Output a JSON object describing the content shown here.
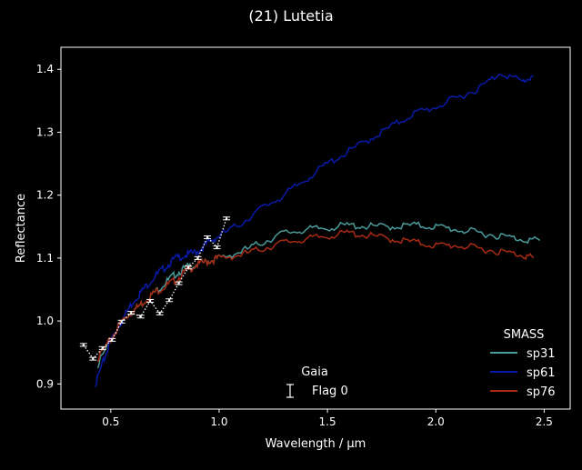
{
  "page": {
    "title": "(21) Lutetia"
  },
  "colors": {
    "background": "#000000",
    "axes": "#ffffff",
    "sp31": "#4a9a9a",
    "sp61": "#0a1aa8",
    "sp76": "#a82a14",
    "gaia": "#ffffff",
    "gaia_overlay_blue": "#2a6ad8",
    "gaia_overlay_salmon": "#c8806a"
  },
  "chart_data": {
    "type": "line",
    "title": "(21) Lutetia",
    "xlabel": "Wavelength / μm",
    "ylabel": "Reflectance",
    "xlim": [
      0.27,
      2.62
    ],
    "ylim": [
      0.86,
      1.435
    ],
    "xticks": [
      "0.5",
      "1.0",
      "1.5",
      "2.0",
      "2.5"
    ],
    "xtick_values": [
      0.5,
      1.0,
      1.5,
      2.0,
      2.5
    ],
    "yticks": [
      "0.9",
      "1.0",
      "1.1",
      "1.2",
      "1.3",
      "1.4"
    ],
    "ytick_values": [
      0.9,
      1.0,
      1.1,
      1.2,
      1.3,
      1.4
    ],
    "grid": false,
    "series": [
      {
        "name": "sp31",
        "color": "#4a9a9a",
        "x": [
          0.44,
          0.5,
          0.55,
          0.6,
          0.65,
          0.7,
          0.75,
          0.8,
          0.85,
          0.9,
          0.95,
          1.0,
          1.1,
          1.2,
          1.3,
          1.4,
          1.5,
          1.6,
          1.7,
          1.8,
          1.9,
          2.0,
          2.1,
          2.2,
          2.3,
          2.4,
          2.48
        ],
        "y": [
          0.93,
          0.97,
          1.0,
          1.015,
          1.03,
          1.045,
          1.06,
          1.075,
          1.085,
          1.09,
          1.095,
          1.1,
          1.11,
          1.125,
          1.14,
          1.145,
          1.148,
          1.152,
          1.15,
          1.15,
          1.152,
          1.15,
          1.145,
          1.14,
          1.135,
          1.13,
          1.128
        ]
      },
      {
        "name": "sp61",
        "color": "#0a1aa8",
        "x": [
          0.43,
          0.47,
          0.5,
          0.55,
          0.6,
          0.65,
          0.7,
          0.75,
          0.8,
          0.85,
          0.9,
          0.95,
          1.0,
          1.1,
          1.2,
          1.3,
          1.4,
          1.5,
          1.6,
          1.7,
          1.8,
          1.9,
          2.0,
          2.1,
          2.2,
          2.3,
          2.4,
          2.45
        ],
        "y": [
          0.9,
          0.94,
          0.97,
          1.0,
          1.03,
          1.05,
          1.07,
          1.085,
          1.1,
          1.105,
          1.11,
          1.125,
          1.135,
          1.155,
          1.18,
          1.2,
          1.225,
          1.25,
          1.27,
          1.29,
          1.31,
          1.33,
          1.34,
          1.355,
          1.37,
          1.395,
          1.38,
          1.39
        ]
      },
      {
        "name": "sp76",
        "color": "#a82a14",
        "x": [
          0.44,
          0.5,
          0.55,
          0.6,
          0.65,
          0.7,
          0.75,
          0.8,
          0.85,
          0.9,
          0.95,
          1.0,
          1.1,
          1.2,
          1.3,
          1.4,
          1.5,
          1.6,
          1.7,
          1.8,
          1.9,
          2.0,
          2.1,
          2.2,
          2.3,
          2.4,
          2.45
        ],
        "y": [
          0.94,
          0.97,
          1.0,
          1.015,
          1.03,
          1.045,
          1.055,
          1.065,
          1.08,
          1.09,
          1.095,
          1.1,
          1.105,
          1.115,
          1.125,
          1.13,
          1.135,
          1.14,
          1.135,
          1.13,
          1.125,
          1.12,
          1.12,
          1.115,
          1.11,
          1.105,
          1.1
        ]
      },
      {
        "name": "Flag 0",
        "source": "Gaia",
        "color": "#ffffff",
        "style": "dotted-errorbars",
        "x": [
          0.374,
          0.418,
          0.462,
          0.506,
          0.55,
          0.594,
          0.638,
          0.682,
          0.726,
          0.77,
          0.814,
          0.858,
          0.902,
          0.946,
          0.99,
          1.034
        ],
        "y": [
          0.962,
          0.94,
          0.957,
          0.97,
          0.999,
          1.013,
          1.007,
          1.032,
          1.012,
          1.033,
          1.06,
          1.085,
          1.1,
          1.133,
          1.117,
          1.163
        ]
      }
    ],
    "legend": {
      "position": "lower-right",
      "title": "SMASS",
      "entries": [
        "sp31",
        "sp61",
        "sp76"
      ]
    },
    "gaia_legend": {
      "position": "lower-center",
      "title": "Gaia",
      "entries": [
        "Flag 0"
      ]
    }
  }
}
